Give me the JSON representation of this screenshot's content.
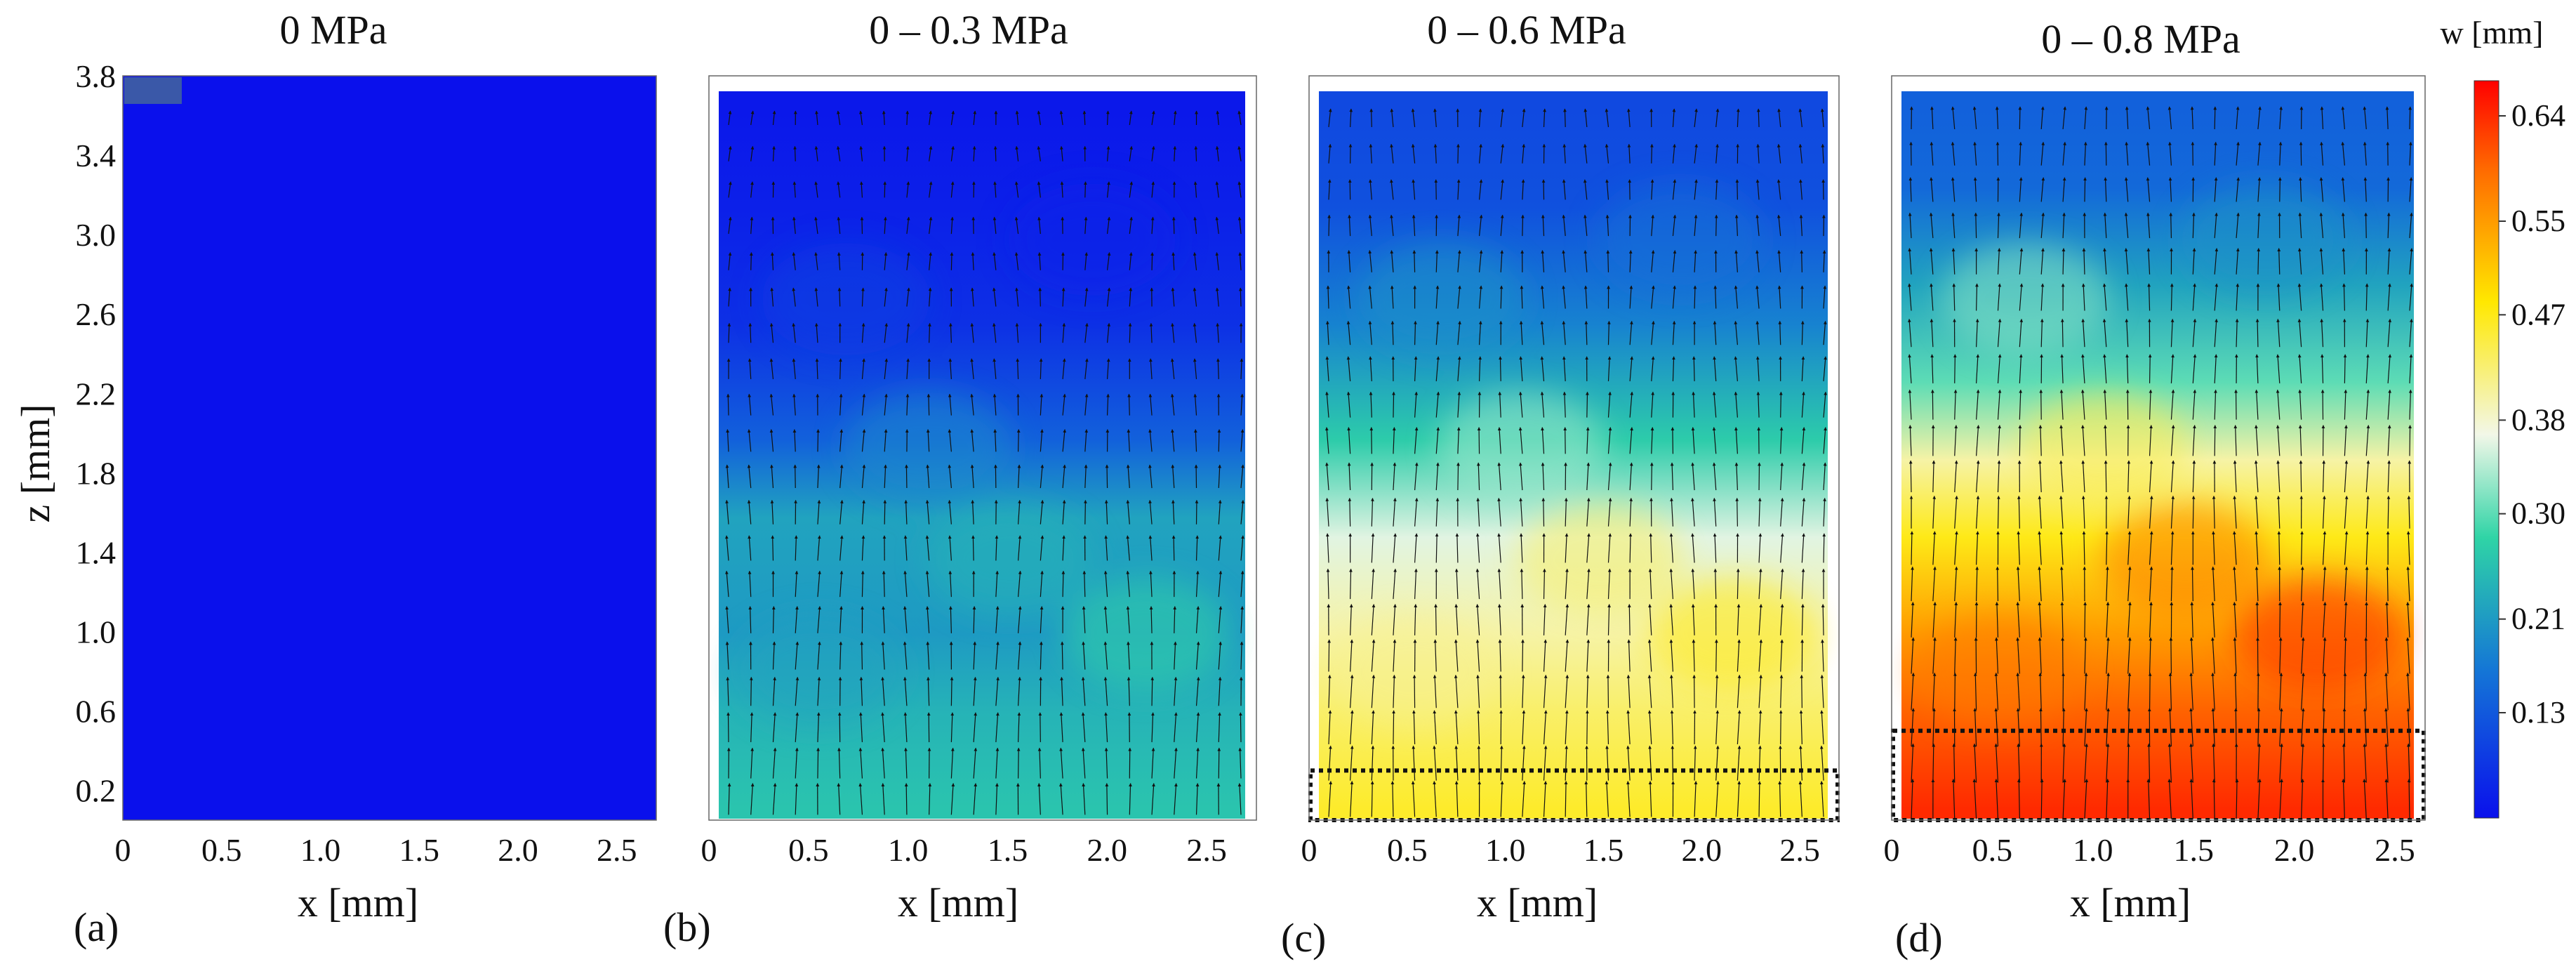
{
  "chart_data": [
    {
      "panel_label": "(a)",
      "title": "0 MPa",
      "type": "heatmap",
      "xlabel": "x [mm]",
      "ylabel": "z [mm]",
      "xticks": [
        "0",
        "0.5",
        "1.0",
        "1.5",
        "2.0",
        "2.5"
      ],
      "yticks": [
        "3.8",
        "3.4",
        "3.0",
        "2.6",
        "2.2",
        "1.8",
        "1.4",
        "1.0",
        "0.6",
        "0.2"
      ],
      "xlim": [
        0,
        2.7
      ],
      "ylim": [
        0.05,
        3.8
      ],
      "field": "uniform displacement w = 0.04 mm (no deformation)",
      "vectors": false,
      "highlight_box": null
    },
    {
      "panel_label": "(b)",
      "title": "0 – 0.3 MPa",
      "type": "heatmap",
      "xlabel": "x [mm]",
      "ylabel": "",
      "xticks": [
        "0",
        "0.5",
        "1.0",
        "1.5",
        "2.0",
        "2.5"
      ],
      "xlim": [
        0,
        2.75
      ],
      "ylim": [
        0.05,
        3.8
      ],
      "w_profile": [
        {
          "z": 0.1,
          "w": 0.26
        },
        {
          "z": 0.6,
          "w": 0.24
        },
        {
          "z": 1.0,
          "w": 0.21
        },
        {
          "z": 1.6,
          "w": 0.22
        },
        {
          "z": 2.0,
          "w": 0.14
        },
        {
          "z": 2.6,
          "w": 0.08
        },
        {
          "z": 3.2,
          "w": 0.06
        },
        {
          "z": 3.7,
          "w": 0.05
        }
      ],
      "vectors": true,
      "highlight_box": null
    },
    {
      "panel_label": "(c)",
      "title": "0 – 0.6 MPa",
      "type": "heatmap",
      "xlabel": "x [mm]",
      "ylabel": "",
      "xticks": [
        "0",
        "0.5",
        "1.0",
        "1.5",
        "2.0",
        "2.5"
      ],
      "xlim": [
        0,
        2.7
      ],
      "ylim": [
        0.05,
        3.8
      ],
      "w_profile": [
        {
          "z": 0.1,
          "w": 0.46
        },
        {
          "z": 0.6,
          "w": 0.43
        },
        {
          "z": 1.0,
          "w": 0.4
        },
        {
          "z": 1.5,
          "w": 0.36
        },
        {
          "z": 2.0,
          "w": 0.27
        },
        {
          "z": 2.6,
          "w": 0.18
        },
        {
          "z": 3.2,
          "w": 0.12
        },
        {
          "z": 3.7,
          "w": 0.11
        }
      ],
      "vectors": true,
      "highlight_box": {
        "x": [
          0,
          2.7
        ],
        "z": [
          0.05,
          0.3
        ]
      }
    },
    {
      "panel_label": "(d)",
      "title": "0 – 0.8 MPa",
      "type": "heatmap",
      "xlabel": "x [mm]",
      "ylabel": "",
      "xticks": [
        "0",
        "0.5",
        "1.0",
        "1.5",
        "2.0",
        "2.5"
      ],
      "xlim": [
        0,
        2.65
      ],
      "ylim": [
        0.05,
        3.8
      ],
      "w_profile": [
        {
          "z": 0.1,
          "w": 0.64
        },
        {
          "z": 0.6,
          "w": 0.6
        },
        {
          "z": 1.0,
          "w": 0.55
        },
        {
          "z": 1.5,
          "w": 0.47
        },
        {
          "z": 1.9,
          "w": 0.4
        },
        {
          "z": 2.3,
          "w": 0.3
        },
        {
          "z": 2.8,
          "w": 0.22
        },
        {
          "z": 3.3,
          "w": 0.15
        },
        {
          "z": 3.7,
          "w": 0.14
        }
      ],
      "vectors": true,
      "highlight_box": {
        "x": [
          0,
          2.65
        ],
        "z": [
          0.05,
          0.5
        ]
      }
    }
  ],
  "colorbar": {
    "label": "w [mm]",
    "ticks": [
      "0.64",
      "0.55",
      "0.47",
      "0.38",
      "0.30",
      "0.21",
      "0.13"
    ],
    "range": [
      0.04,
      0.67
    ],
    "stops": [
      {
        "v": 0.0,
        "color": "#ff0000"
      },
      {
        "v": 0.12,
        "color": "#ff6a00"
      },
      {
        "v": 0.3,
        "color": "#ffe800"
      },
      {
        "v": 0.48,
        "color": "#f2f7e8"
      },
      {
        "v": 0.62,
        "color": "#2fd4a6"
      },
      {
        "v": 0.8,
        "color": "#1476d6"
      },
      {
        "v": 1.0,
        "color": "#0a10ec"
      }
    ]
  }
}
